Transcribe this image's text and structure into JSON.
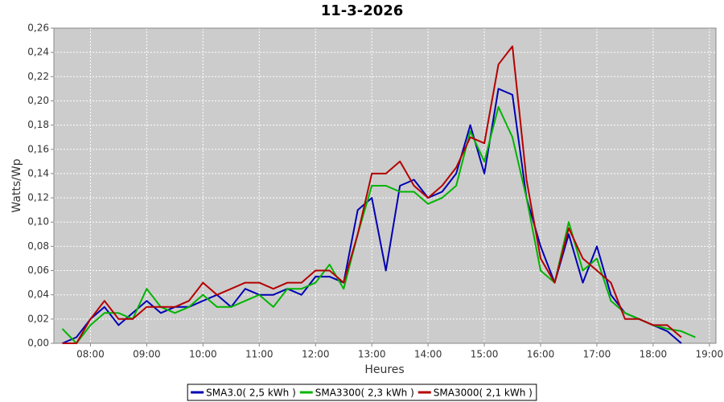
{
  "chart_data": {
    "type": "line",
    "title": "11-3-2026",
    "x_label": "Heures",
    "y_label": "Watts/Wp",
    "x": [
      "07:30",
      "07:45",
      "08:00",
      "08:15",
      "08:30",
      "08:45",
      "09:00",
      "09:15",
      "09:30",
      "09:45",
      "10:00",
      "10:15",
      "10:30",
      "10:45",
      "11:00",
      "11:15",
      "11:30",
      "11:45",
      "12:00",
      "12:15",
      "12:30",
      "12:45",
      "13:00",
      "13:15",
      "13:30",
      "13:45",
      "14:00",
      "14:15",
      "14:30",
      "14:45",
      "15:00",
      "15:15",
      "15:30",
      "15:45",
      "16:00",
      "16:15",
      "16:30",
      "16:45",
      "17:00",
      "17:15",
      "17:30",
      "17:45",
      "18:00",
      "18:15",
      "18:30",
      "18:45"
    ],
    "series": [
      {
        "name": "SMA3.0( 2,5 kWh )",
        "color": "#0000b4",
        "values": [
          0,
          0.005,
          0.02,
          0.03,
          0.015,
          0.025,
          0.035,
          0.025,
          0.03,
          0.03,
          0.035,
          0.04,
          0.03,
          0.045,
          0.04,
          0.04,
          0.045,
          0.04,
          0.055,
          0.055,
          0.05,
          0.11,
          0.12,
          0.06,
          0.13,
          0.135,
          0.12,
          0.125,
          0.14,
          0.18,
          0.14,
          0.21,
          0.205,
          0.12,
          0.08,
          0.05,
          0.09,
          0.05,
          0.08,
          0.04,
          0.025,
          0.02,
          0.015,
          0.01,
          0,
          null
        ]
      },
      {
        "name": "SMA3300( 2,3 kWh )",
        "color": "#00b400",
        "values": [
          0.012,
          0,
          0.015,
          0.025,
          0.025,
          0.02,
          0.045,
          0.03,
          0.025,
          0.03,
          0.04,
          0.03,
          0.03,
          0.035,
          0.04,
          0.03,
          0.045,
          0.045,
          0.05,
          0.065,
          0.045,
          0.09,
          0.13,
          0.13,
          0.125,
          0.125,
          0.115,
          0.12,
          0.13,
          0.175,
          0.15,
          0.195,
          0.17,
          0.12,
          0.06,
          0.05,
          0.1,
          0.06,
          0.07,
          0.035,
          0.025,
          0.02,
          0.015,
          0.012,
          0.01,
          0.005
        ]
      },
      {
        "name": "SMA3000( 2,1 kWh )",
        "color": "#b40000",
        "values": [
          0,
          0,
          0.02,
          0.035,
          0.02,
          0.02,
          0.03,
          0.03,
          0.03,
          0.035,
          0.05,
          0.04,
          0.045,
          0.05,
          0.05,
          0.045,
          0.05,
          0.05,
          0.06,
          0.06,
          0.05,
          0.09,
          0.14,
          0.14,
          0.15,
          0.13,
          0.12,
          0.13,
          0.145,
          0.17,
          0.165,
          0.23,
          0.245,
          0.135,
          0.07,
          0.05,
          0.095,
          0.07,
          0.06,
          0.05,
          0.02,
          0.02,
          0.015,
          0.015,
          0.005,
          null
        ]
      }
    ],
    "xlim": [
      "07:21",
      "19:07"
    ],
    "xticks": [
      "08:00",
      "09:00",
      "10:00",
      "11:00",
      "12:00",
      "13:00",
      "14:00",
      "15:00",
      "16:00",
      "17:00",
      "18:00",
      "19:00"
    ],
    "ylim": [
      0,
      0.26
    ],
    "yticks": [
      {
        "value": 0,
        "label": "0,00"
      },
      {
        "value": 0.02,
        "label": "0,02"
      },
      {
        "value": 0.04,
        "label": "0,04"
      },
      {
        "value": 0.06,
        "label": "0,06"
      },
      {
        "value": 0.08,
        "label": "0,08"
      },
      {
        "value": 0.1,
        "label": "0,10"
      },
      {
        "value": 0.12,
        "label": "0,12"
      },
      {
        "value": 0.14,
        "label": "0,14"
      },
      {
        "value": 0.16,
        "label": "0,16"
      },
      {
        "value": 0.18,
        "label": "0,18"
      },
      {
        "value": 0.2,
        "label": "0,20"
      },
      {
        "value": 0.22,
        "label": "0,22"
      },
      {
        "value": 0.24,
        "label": "0,24"
      },
      {
        "value": 0.26,
        "label": "0,26"
      }
    ],
    "grid": true,
    "legend": "bottom",
    "background": "#cccccc"
  }
}
